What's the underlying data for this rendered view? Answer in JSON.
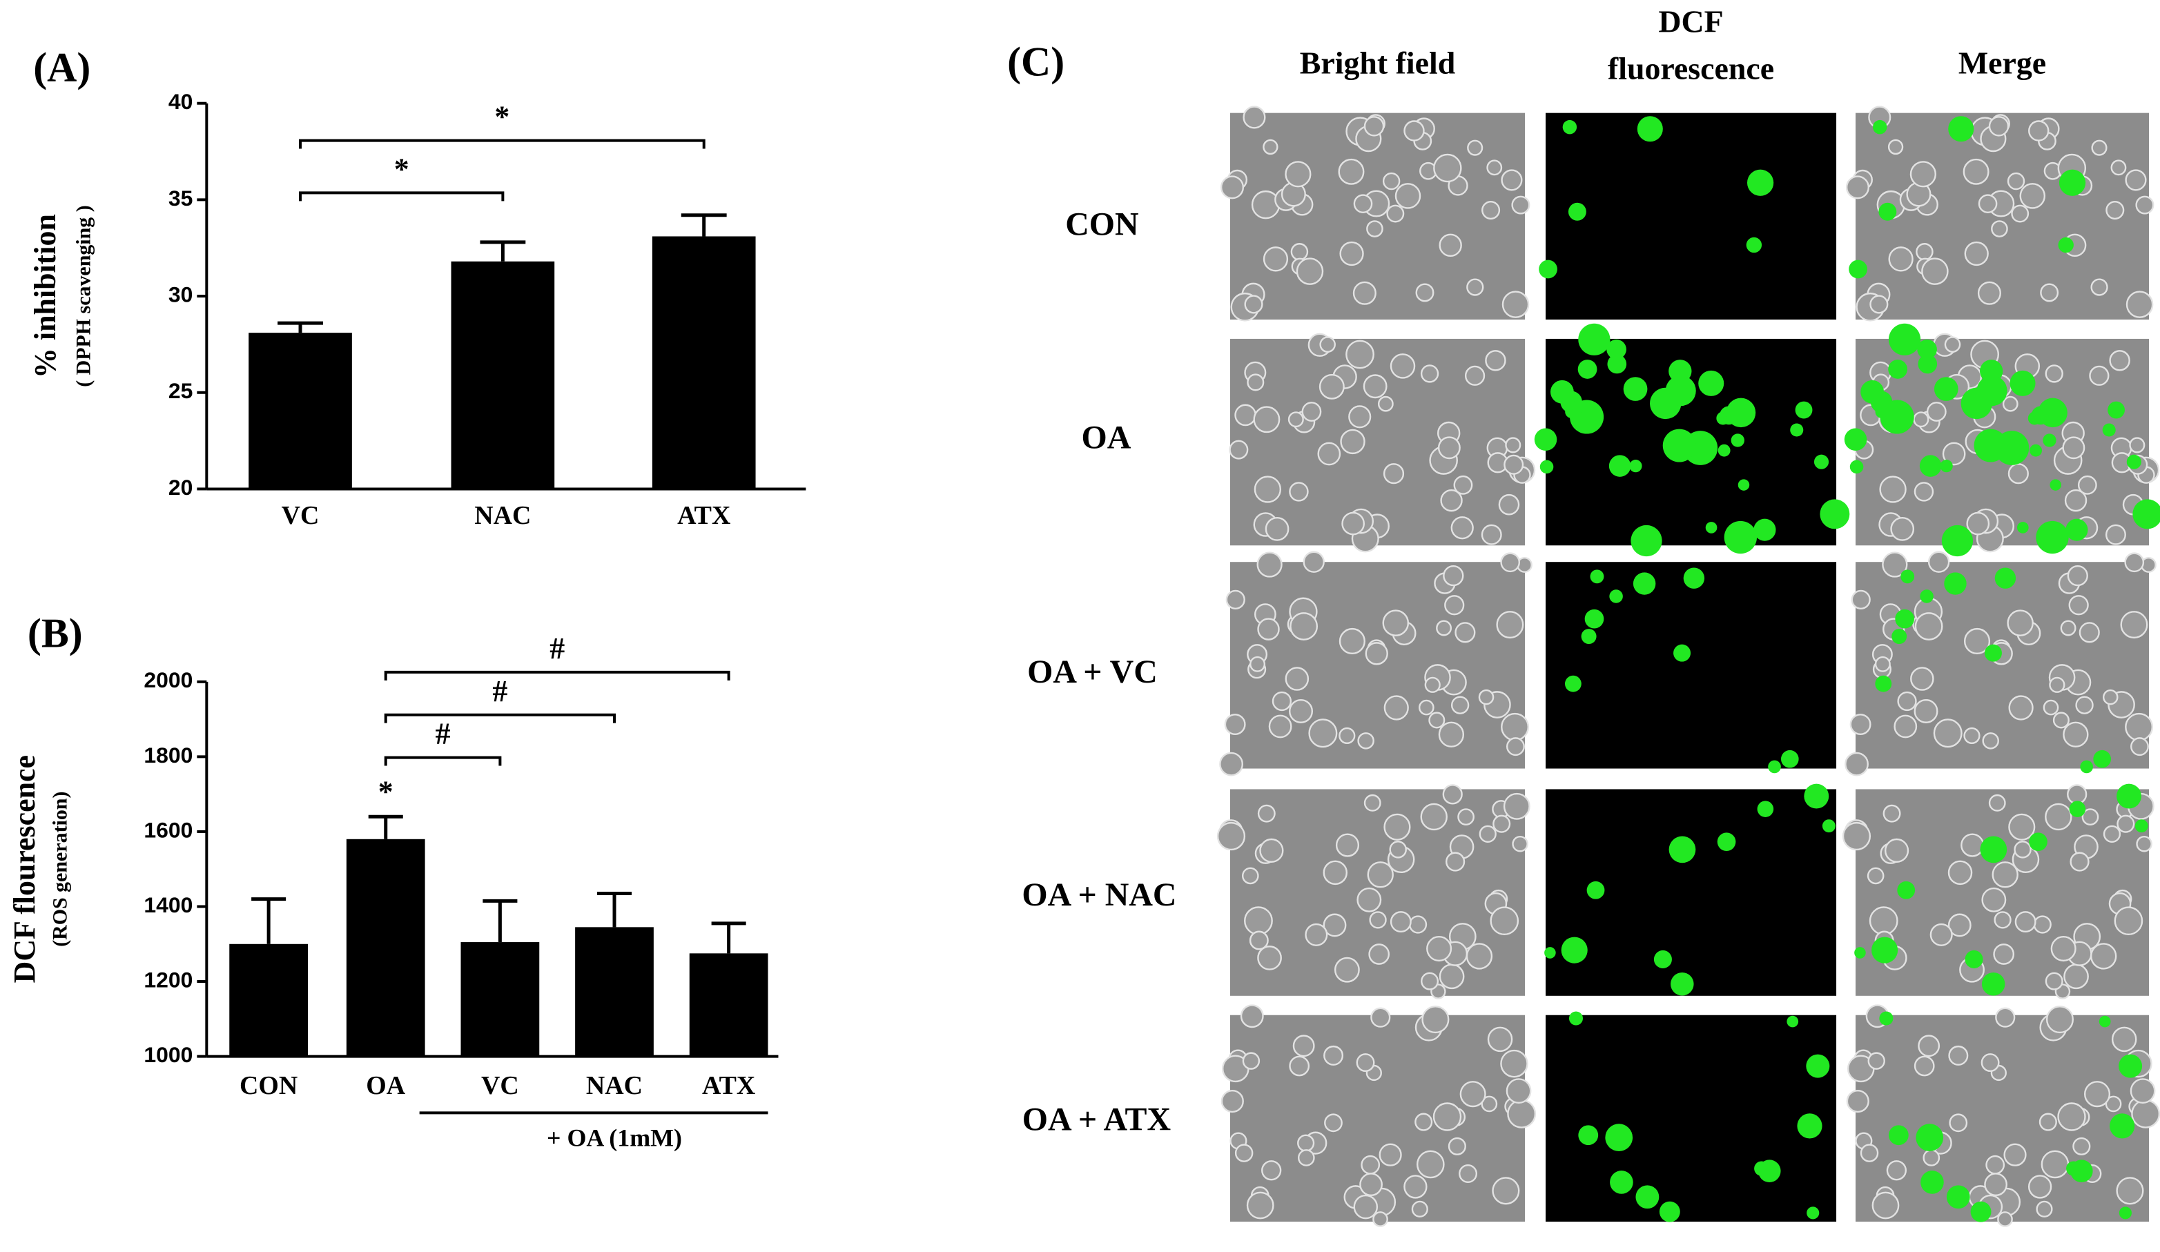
{
  "chart_data": [
    {
      "type": "bar",
      "panel_label": "(A)",
      "ylabel": "% inhibition",
      "ylabel_sub": "( DPPH scavenging )",
      "categories": [
        "VC",
        "NAC",
        "ATX"
      ],
      "values": [
        28.1,
        31.8,
        33.1
      ],
      "errors": [
        0.5,
        1.0,
        1.1
      ],
      "color": "#000000",
      "ylim": [
        20,
        40
      ],
      "yticks": [
        20,
        25,
        30,
        35,
        40
      ],
      "annotations": [
        {
          "label": "*",
          "span": [
            "VC",
            "NAC"
          ]
        },
        {
          "label": "*",
          "span": [
            "VC",
            "ATX"
          ]
        }
      ]
    },
    {
      "type": "bar",
      "panel_label": "(B)",
      "ylabel": "DCF flourescence",
      "ylabel_sub": "(ROS generation)",
      "categories": [
        "CON",
        "OA",
        "VC",
        "NAC",
        "ATX"
      ],
      "values": [
        1300,
        1580,
        1305,
        1345,
        1275
      ],
      "errors": [
        120,
        60,
        110,
        90,
        80
      ],
      "color": "#000000",
      "ylim": [
        1000,
        2000
      ],
      "yticks": [
        1000,
        1200,
        1400,
        1600,
        1800,
        2000
      ],
      "annotations": [
        {
          "label": "*",
          "span": [
            "OA"
          ]
        },
        {
          "label": "#",
          "span": [
            "OA",
            "VC"
          ]
        },
        {
          "label": "#",
          "span": [
            "OA",
            "NAC"
          ]
        },
        {
          "label": "#",
          "span": [
            "OA",
            "ATX"
          ]
        }
      ],
      "group_label": "+ OA (1mM)",
      "group_span": [
        "VC",
        "ATX"
      ]
    }
  ],
  "panel_c": {
    "label": "(C)",
    "column_headers": [
      {
        "lines": [
          "Bright  field"
        ]
      },
      {
        "lines": [
          "DCF",
          "fluorescence"
        ]
      },
      {
        "lines": [
          "Merge"
        ]
      }
    ],
    "row_labels": [
      "CON",
      "OA",
      "OA + VC",
      "OA + NAC",
      "OA + ATX"
    ]
  }
}
